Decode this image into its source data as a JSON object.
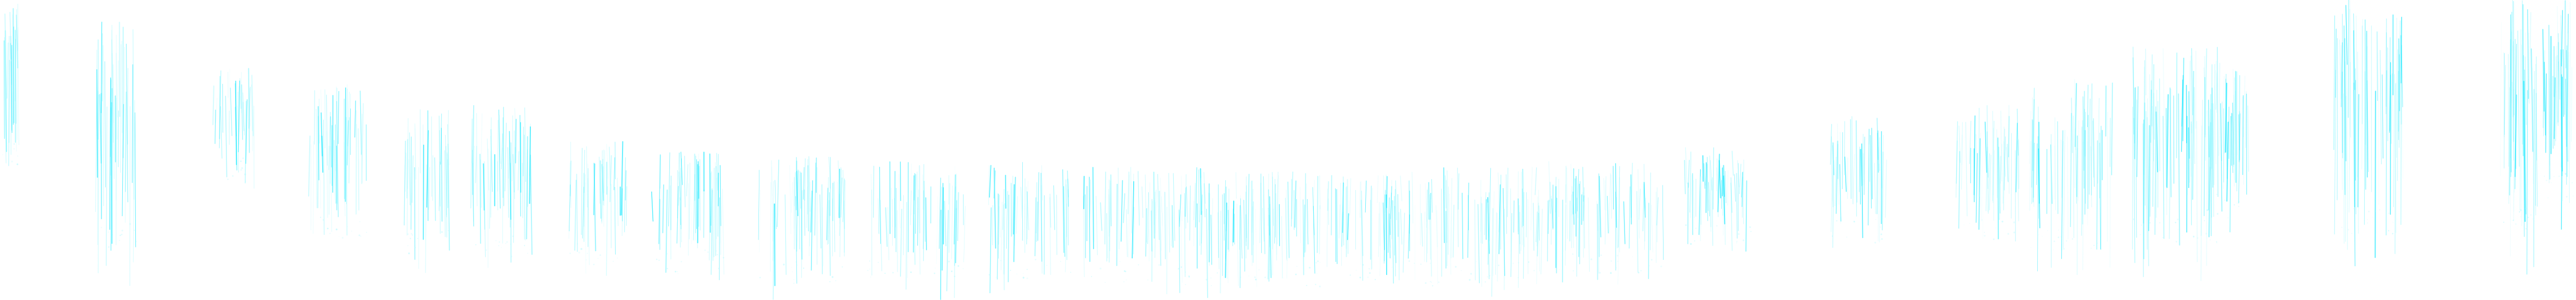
{
  "image": {
    "subject": "cyan-streak-texture",
    "background_color": "#ffffff",
    "stroke_colors": [
      "#00e5ff",
      "#5ef2ff",
      "#b8faff"
    ],
    "clusters": [
      {
        "name": "cluster-1",
        "density": 0.9
      },
      {
        "name": "cluster-2",
        "density": 0.8
      },
      {
        "name": "cluster-3",
        "density": 0.6
      },
      {
        "name": "cluster-4",
        "density": 0.7
      },
      {
        "name": "cluster-5",
        "density": 0.6
      },
      {
        "name": "cluster-6",
        "density": 0.7
      },
      {
        "name": "cluster-7",
        "density": 0.6
      },
      {
        "name": "cluster-8",
        "density": 0.6
      },
      {
        "name": "cluster-9",
        "density": 0.6
      },
      {
        "name": "cluster-10",
        "density": 0.5
      },
      {
        "name": "cluster-11",
        "density": 0.5
      },
      {
        "name": "cluster-12",
        "density": 0.5
      },
      {
        "name": "cluster-13",
        "density": 0.6
      },
      {
        "name": "cluster-14",
        "density": 0.5
      },
      {
        "name": "cluster-15",
        "density": 0.5
      },
      {
        "name": "cluster-16",
        "density": 0.5
      },
      {
        "name": "cluster-17",
        "density": 0.6
      },
      {
        "name": "cluster-18",
        "density": 0.6
      },
      {
        "name": "cluster-19",
        "density": 0.6
      },
      {
        "name": "cluster-20",
        "density": 0.6
      },
      {
        "name": "cluster-21",
        "density": 0.7
      },
      {
        "name": "cluster-22",
        "density": 0.7
      },
      {
        "name": "cluster-23",
        "density": 0.8
      },
      {
        "name": "cluster-24",
        "density": 0.9
      },
      {
        "name": "cluster-25",
        "density": 0.9
      }
    ]
  }
}
